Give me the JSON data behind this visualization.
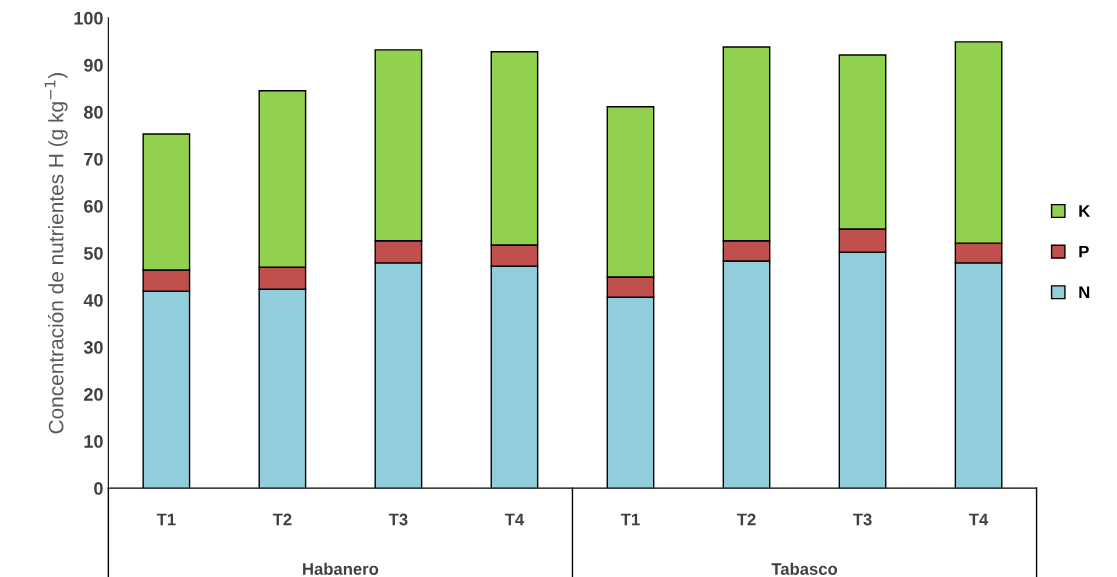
{
  "chart_data": {
    "type": "bar",
    "stacked": true,
    "ylabel": "Concentración de nutrientes H (g kg$^{−1}$)",
    "categories": [
      "T1",
      "T2",
      "T3",
      "T4",
      "T1",
      "T2",
      "T3",
      "T4"
    ],
    "annotations": [
      "Habanero",
      "Tabasco"
    ],
    "series": [
      {
        "name": "N",
        "color": "#92cddc",
        "values": [
          41.9,
          42.3,
          47.9,
          47.2,
          40.6,
          48.3,
          50.2,
          47.9
        ]
      },
      {
        "name": "P",
        "color": "#c0504d",
        "values": [
          4.5,
          4.7,
          4.7,
          4.5,
          4.3,
          4.3,
          4.9,
          4.2
        ]
      },
      {
        "name": "K",
        "color": "#92d050",
        "values": [
          28.9,
          37.5,
          40.6,
          41.1,
          36.2,
          41.2,
          37.0,
          42.8
        ]
      }
    ],
    "ylim": [
      0,
      100
    ],
    "yticks": [
      0,
      10,
      20,
      30,
      40,
      50,
      60,
      70,
      80,
      90,
      100
    ],
    "grid": false,
    "legend": "right"
  }
}
